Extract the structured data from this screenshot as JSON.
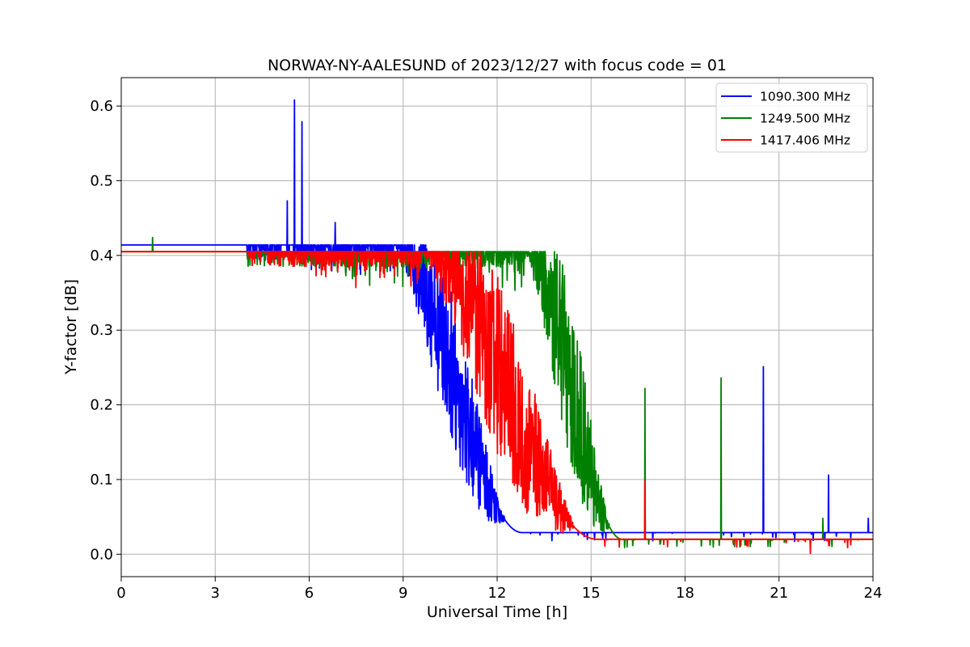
{
  "chart_data": {
    "type": "line",
    "title": "NORWAY-NY-AALESUND of 2023/12/27 with focus code = 01",
    "xlabel": "Universal Time [h]",
    "ylabel": "Y-factor [dB]",
    "xlim": [
      0,
      24
    ],
    "ylim": [
      -0.03,
      0.638
    ],
    "xticks": [
      0,
      3,
      6,
      9,
      12,
      15,
      18,
      21,
      24
    ],
    "xtick_labels": [
      "0",
      "3",
      "6",
      "9",
      "12",
      "15",
      "18",
      "21",
      "24"
    ],
    "yticks": [
      0.0,
      0.1,
      0.2,
      0.3,
      0.4,
      0.5,
      0.6
    ],
    "ytick_labels": [
      "0.0",
      "0.1",
      "0.2",
      "0.3",
      "0.4",
      "0.5",
      "0.6"
    ],
    "grid": true,
    "legend_position": "top-right",
    "series": [
      {
        "name": "1090.300 MHz",
        "color": "#0000ff",
        "baseline_start": 0.414,
        "baseline_end": 0.029,
        "decline_start_h": 8.7,
        "decline_end_h": 12.8,
        "noise_amplitude": 0.1,
        "spikes": [
          {
            "x": 5.3,
            "y": 0.473
          },
          {
            "x": 5.53,
            "y": 0.608
          },
          {
            "x": 5.77,
            "y": 0.579
          },
          {
            "x": 6.83,
            "y": 0.444
          },
          {
            "x": 20.5,
            "y": 0.251
          },
          {
            "x": 22.58,
            "y": 0.106
          },
          {
            "x": 23.85,
            "y": 0.048
          }
        ]
      },
      {
        "name": "1249.500 MHz",
        "color": "#008000",
        "baseline_start": 0.405,
        "baseline_end": 0.02,
        "decline_start_h": 12.9,
        "decline_end_h": 16.0,
        "noise_amplitude": 0.11,
        "spikes": [
          {
            "x": 1.0,
            "y": 0.424
          },
          {
            "x": 16.72,
            "y": 0.222
          },
          {
            "x": 19.15,
            "y": 0.236
          },
          {
            "x": 22.4,
            "y": 0.048
          }
        ]
      },
      {
        "name": "1417.406 MHz",
        "color": "#ff0000",
        "baseline_start": 0.405,
        "baseline_end": 0.02,
        "decline_start_h": 9.6,
        "decline_end_h": 15.2,
        "noise_amplitude": 0.12,
        "spikes": [
          {
            "x": 16.72,
            "y": 0.098
          },
          {
            "x": 22.0,
            "y": 0.001
          }
        ]
      }
    ]
  }
}
